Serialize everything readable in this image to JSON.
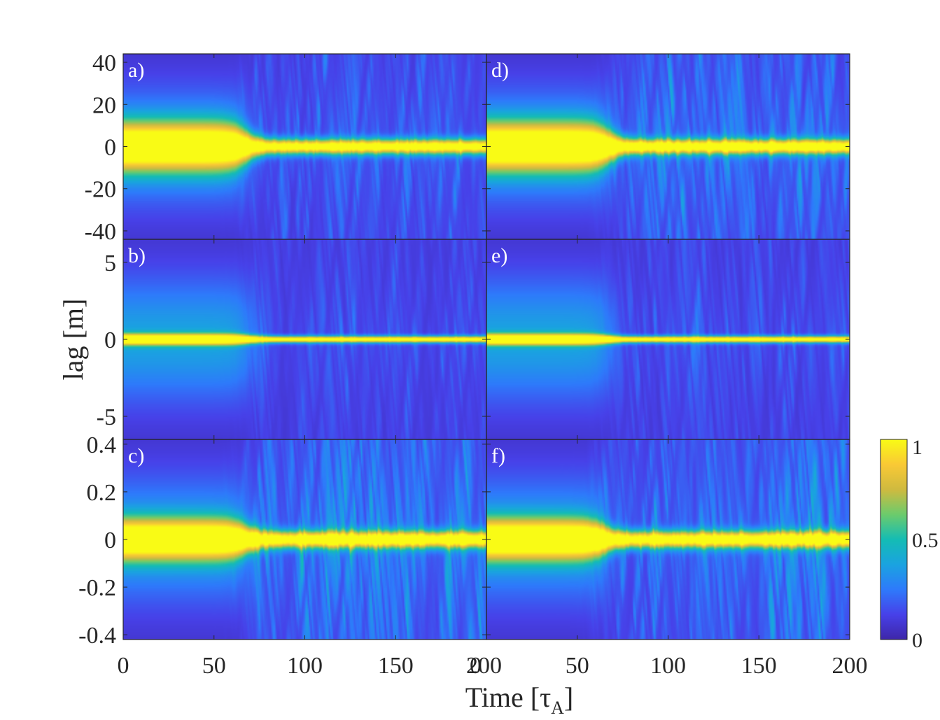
{
  "chart_data": {
    "type": "heatmap",
    "xlabel": "Time [τA]",
    "xlabel_main": "Time [τ",
    "xlabel_sub": "A",
    "xlabel_close": "]",
    "ylabel": "lag [m]",
    "xlim": [
      0,
      200
    ],
    "x_ticks": [
      "0",
      "50",
      "100",
      "150",
      "200"
    ],
    "colorbar": {
      "min": 0,
      "max": 1,
      "ticks": [
        "0",
        "0.5",
        "1"
      ],
      "colormap": "parula"
    },
    "panels": [
      {
        "label": "a)",
        "column": 0,
        "row": 0,
        "ylim": [
          -44,
          44
        ],
        "y_ticks": [
          40,
          20,
          0,
          -20,
          -40
        ],
        "y_tick_labels": [
          "40",
          "20",
          "0",
          "-20",
          "-40"
        ],
        "core_width_initial": 8,
        "core_width_late": 2.5,
        "transition_time": 68,
        "turbulence": 0.3
      },
      {
        "label": "b)",
        "column": 0,
        "row": 1,
        "ylim": [
          -6.5,
          6.5
        ],
        "y_ticks": [
          5,
          0,
          -5
        ],
        "y_tick_labels": [
          "5",
          "0",
          "-5"
        ],
        "core_width_initial": 0.25,
        "core_width_late": 0.15,
        "transition_time": 70,
        "turbulence": 0.2
      },
      {
        "label": "c)",
        "column": 0,
        "row": 2,
        "ylim": [
          -0.42,
          0.42
        ],
        "y_ticks": [
          0.4,
          0.2,
          0,
          -0.2,
          -0.4
        ],
        "y_tick_labels": [
          "0.4",
          "0.2",
          "0",
          "-0.2",
          "-0.4"
        ],
        "core_width_initial": 0.06,
        "core_width_late": 0.025,
        "transition_time": 68,
        "turbulence": 0.45
      },
      {
        "label": "d)",
        "column": 1,
        "row": 0,
        "ylim": [
          -44,
          44
        ],
        "y_ticks": [
          40,
          20,
          0,
          -20,
          -40
        ],
        "y_tick_labels": [
          "40",
          "20",
          "0",
          "-20",
          "-40"
        ],
        "core_width_initial": 8,
        "core_width_late": 2.5,
        "transition_time": 68,
        "turbulence": 0.38
      },
      {
        "label": "e)",
        "column": 1,
        "row": 1,
        "ylim": [
          -6.5,
          6.5
        ],
        "y_ticks": [
          5,
          0,
          -5
        ],
        "y_tick_labels": [
          "5",
          "0",
          "-5"
        ],
        "core_width_initial": 0.25,
        "core_width_late": 0.15,
        "transition_time": 68,
        "turbulence": 0.2
      },
      {
        "label": "f)",
        "column": 1,
        "row": 2,
        "ylim": [
          -0.42,
          0.42
        ],
        "y_ticks": [
          0.4,
          0.2,
          0,
          -0.2,
          -0.4
        ],
        "y_tick_labels": [
          "0.4",
          "0.2",
          "0",
          "-0.2",
          "-0.4"
        ],
        "core_width_initial": 0.06,
        "core_width_late": 0.025,
        "transition_time": 65,
        "turbulence": 0.42
      }
    ]
  }
}
